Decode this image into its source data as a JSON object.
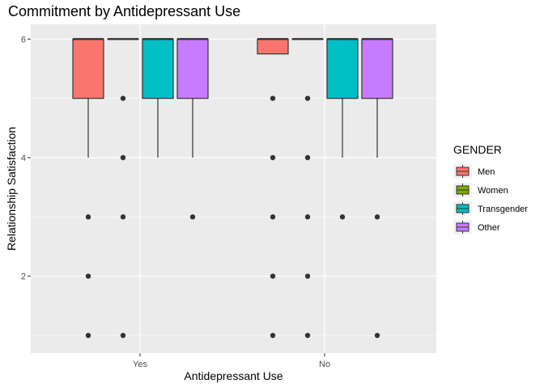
{
  "chart_data": {
    "type": "boxplot",
    "title": "Commitment by Antidepressant Use",
    "xlabel": "Antidepressant Use",
    "ylabel": "Relationship Satisfaction",
    "categories": [
      "Yes",
      "No"
    ],
    "yticks": [
      2,
      4,
      6
    ],
    "ylim": [
      0.7,
      6.25
    ],
    "legend": {
      "title": "GENDER",
      "placement": "right"
    },
    "series": [
      {
        "name": "Men",
        "color": "#F8766D",
        "boxes": [
          {
            "category": "Yes",
            "q1": 5,
            "median": 6,
            "q3": 6,
            "whisker_low": 4,
            "whisker_high": 6,
            "outliers": [
              3,
              2,
              1
            ]
          },
          {
            "category": "No",
            "q1": 5.75,
            "median": 6,
            "q3": 6,
            "whisker_low": 5.75,
            "whisker_high": 6,
            "outliers": [
              5,
              4,
              3,
              2,
              1
            ]
          }
        ]
      },
      {
        "name": "Women",
        "color": "#7CAE00",
        "boxes": [
          {
            "category": "Yes",
            "q1": 6,
            "median": 6,
            "q3": 6,
            "whisker_low": 6,
            "whisker_high": 6,
            "outliers": [
              5,
              4,
              3,
              1
            ]
          },
          {
            "category": "No",
            "q1": 6,
            "median": 6,
            "q3": 6,
            "whisker_low": 6,
            "whisker_high": 6,
            "outliers": [
              5,
              4,
              3,
              2,
              1
            ]
          }
        ]
      },
      {
        "name": "Transgender",
        "color": "#00BFC4",
        "boxes": [
          {
            "category": "Yes",
            "q1": 5,
            "median": 6,
            "q3": 6,
            "whisker_low": 4,
            "whisker_high": 6,
            "outliers": []
          },
          {
            "category": "No",
            "q1": 5,
            "median": 6,
            "q3": 6,
            "whisker_low": 4,
            "whisker_high": 6,
            "outliers": [
              3
            ]
          }
        ]
      },
      {
        "name": "Other",
        "color": "#C77CFF",
        "boxes": [
          {
            "category": "Yes",
            "q1": 5,
            "median": 6,
            "q3": 6,
            "whisker_low": 4,
            "whisker_high": 6,
            "outliers": [
              3
            ]
          },
          {
            "category": "No",
            "q1": 5,
            "median": 6,
            "q3": 6,
            "whisker_low": 4,
            "whisker_high": 6,
            "outliers": [
              3,
              1
            ]
          }
        ]
      }
    ],
    "grid": true,
    "colors": {
      "panel": "#EBEBEB",
      "grid": "#FFFFFF",
      "box_outline": "#333333",
      "point": "#333333"
    }
  }
}
